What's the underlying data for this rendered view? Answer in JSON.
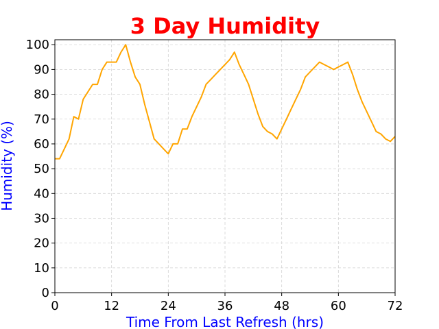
{
  "chart_data": {
    "type": "line",
    "title": "3 Day Humidity",
    "xlabel": "Time From Last Refresh (hrs)",
    "ylabel": "Humidity (%)",
    "xlim": [
      0,
      72
    ],
    "ylim": [
      0,
      102
    ],
    "xticks": [
      0,
      12,
      24,
      36,
      48,
      60,
      72
    ],
    "yticks": [
      0,
      10,
      20,
      30,
      40,
      50,
      60,
      70,
      80,
      90,
      100
    ],
    "grid": true,
    "colors": {
      "title": "#ff0000",
      "axis_labels": "#0000ff",
      "series": "#ffa500",
      "grid": "#d3d3d3"
    },
    "series": [
      {
        "x": [
          0,
          1,
          2,
          3,
          4,
          5,
          6,
          7,
          8,
          9,
          10,
          11,
          12,
          13,
          14,
          15,
          16,
          17,
          18,
          19,
          20,
          21,
          22,
          23,
          24,
          25,
          26,
          27,
          28,
          29,
          30,
          31,
          32,
          33,
          34,
          35,
          36,
          37,
          38,
          39,
          40,
          41,
          42,
          43,
          44,
          45,
          46,
          47,
          48,
          49,
          50,
          51,
          52,
          53,
          54,
          55,
          56,
          57,
          58,
          59,
          60,
          61,
          62,
          63,
          64,
          65,
          66,
          67,
          68,
          69,
          70,
          71,
          72
        ],
        "y": [
          54,
          54,
          58,
          62,
          71,
          70,
          78,
          81,
          84,
          84,
          90,
          93,
          93,
          93,
          97,
          100,
          93,
          87,
          84,
          76,
          69,
          62,
          60,
          58,
          56,
          60,
          60,
          66,
          66,
          71,
          75,
          79,
          84,
          86,
          88,
          90,
          92,
          94,
          97,
          92,
          88,
          84,
          78,
          72,
          67,
          65,
          64,
          62,
          66,
          70,
          74,
          78,
          82,
          87,
          89,
          91,
          93,
          92,
          91,
          90,
          91,
          92,
          93,
          88,
          82,
          77,
          73,
          69,
          65,
          64,
          62,
          61,
          63
        ]
      }
    ]
  }
}
